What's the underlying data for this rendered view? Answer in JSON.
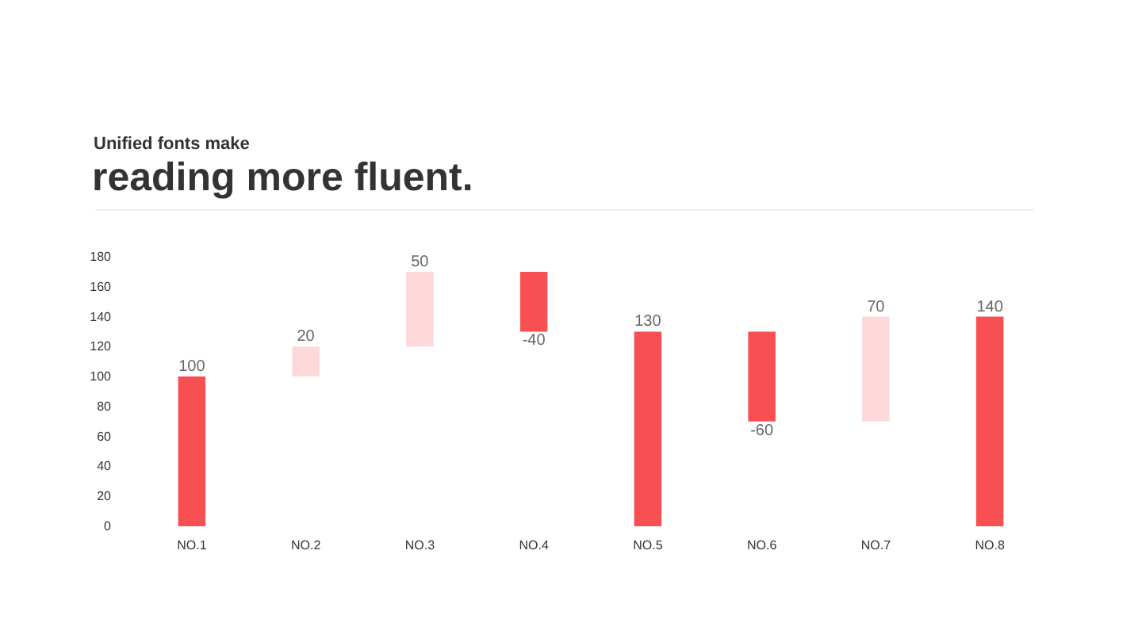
{
  "chart_data": {
    "type": "bar",
    "subtitle": "Unified fonts make",
    "title": "reading more fluent.",
    "categories": [
      "NO.1",
      "NO.2",
      "NO.3",
      "NO.4",
      "NO.5",
      "NO.6",
      "NO.7",
      "NO.8"
    ],
    "values": [
      100,
      20,
      50,
      -40,
      130,
      -60,
      70,
      140
    ],
    "base": [
      0,
      100,
      120,
      170,
      0,
      130,
      70,
      0
    ],
    "colors": [
      "#f74f52",
      "#fdd9d9",
      "#fdd9d9",
      "#f74f52",
      "#f74f52",
      "#f74f52",
      "#fdd9d9",
      "#f74f52"
    ],
    "ylim": [
      0,
      180
    ],
    "yticks": [
      0,
      20,
      40,
      60,
      80,
      100,
      120,
      140,
      160,
      180
    ],
    "data_labels": true
  }
}
